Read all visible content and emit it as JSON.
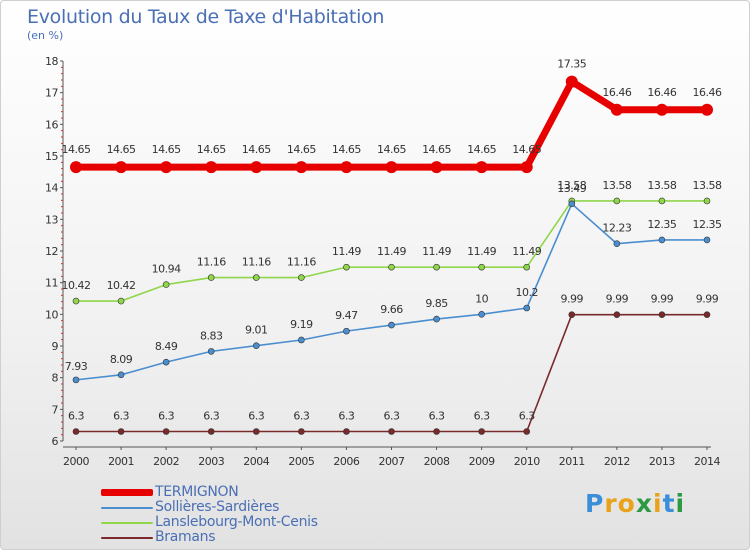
{
  "title": "Evolution du Taux de Taxe d'Habitation",
  "subtitle": "(en %)",
  "logo": {
    "letters": [
      "P",
      "r",
      "o",
      "x",
      "i",
      "t",
      "i"
    ],
    "colors": [
      "#3a8fd8",
      "#e9a31b",
      "#e9a31b",
      "#2c9a45",
      "#e9a31b",
      "#3a8fd8",
      "#2c9a45"
    ]
  },
  "chart_data": {
    "type": "line",
    "title": "Evolution du Taux de Taxe d'Habitation",
    "ylabel": "(en %)",
    "xlabel": "",
    "x": [
      "2000",
      "2001",
      "2002",
      "2003",
      "2004",
      "2005",
      "2006",
      "2007",
      "2008",
      "2009",
      "2010",
      "2011",
      "2012",
      "2013",
      "2014"
    ],
    "ylim": [
      6,
      18
    ],
    "yticks": [
      "6",
      "7",
      "8",
      "9",
      "10",
      "11",
      "12",
      "13",
      "14",
      "15",
      "16",
      "17",
      "18"
    ],
    "grid": false,
    "legend_position": "bottom-left",
    "series": [
      {
        "name": "TERMIGNON",
        "color": "#e60000",
        "values": [
          14.65,
          14.65,
          14.65,
          14.65,
          14.65,
          14.65,
          14.65,
          14.65,
          14.65,
          14.65,
          14.65,
          17.35,
          16.46,
          16.46,
          16.46
        ],
        "labels": [
          "14.65",
          "14.65",
          "14.65",
          "14.65",
          "14.65",
          "14.65",
          "14.65",
          "14.65",
          "14.65",
          "14.65",
          "14.65",
          "17.35",
          "16.46",
          "16.46",
          "16.46"
        ]
      },
      {
        "name": "Sollières-Sardières",
        "color": "#4a8ed0",
        "values": [
          7.93,
          8.09,
          8.49,
          8.83,
          9.01,
          9.19,
          9.47,
          9.66,
          9.85,
          10,
          10.2,
          13.49,
          12.23,
          12.35,
          12.35
        ],
        "labels": [
          "7.93",
          "8.09",
          "8.49",
          "8.83",
          "9.01",
          "9.19",
          "9.47",
          "9.66",
          "9.85",
          "10",
          "10.2",
          "13.49",
          "12.23",
          "12.35",
          "12.35"
        ]
      },
      {
        "name": "Lanslebourg-Mont-Cenis",
        "color": "#8fd64a",
        "values": [
          10.42,
          10.42,
          10.94,
          11.16,
          11.16,
          11.16,
          11.49,
          11.49,
          11.49,
          11.49,
          11.49,
          13.58,
          13.58,
          13.58,
          13.58
        ],
        "labels": [
          "10.42",
          "10.42",
          "10.94",
          "11.16",
          "11.16",
          "11.16",
          "11.49",
          "11.49",
          "11.49",
          "11.49",
          "11.49",
          "13.58",
          "13.58",
          "13.58",
          "13.58"
        ]
      },
      {
        "name": "Bramans",
        "color": "#7a2a2a",
        "values": [
          6.3,
          6.3,
          6.3,
          6.3,
          6.3,
          6.3,
          6.3,
          6.3,
          6.3,
          6.3,
          6.3,
          9.99,
          9.99,
          9.99,
          9.99
        ],
        "labels": [
          "6.3",
          "6.3",
          "6.3",
          "6.3",
          "6.3",
          "6.3",
          "6.3",
          "6.3",
          "6.3",
          "6.3",
          "6.3",
          "9.99",
          "9.99",
          "9.99",
          "9.99"
        ]
      }
    ]
  }
}
